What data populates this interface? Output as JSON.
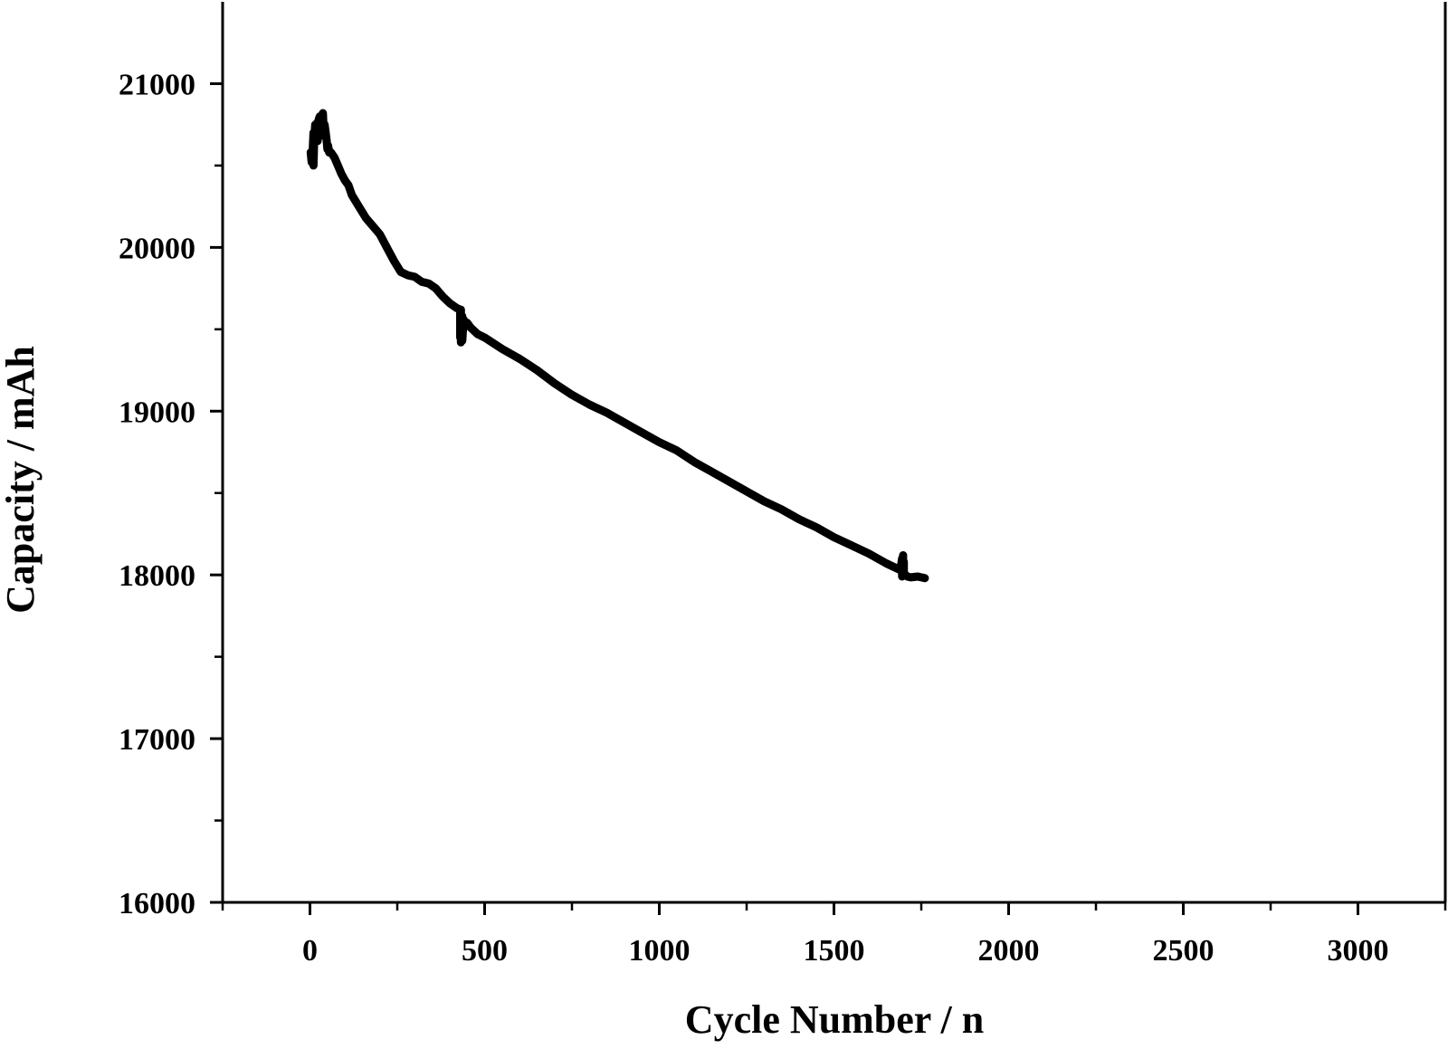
{
  "chart_data": {
    "type": "line",
    "title": "",
    "xlabel": "Cycle Number / n",
    "ylabel": "Capacity / mAh",
    "xlim": [
      -250,
      3250
    ],
    "ylim": [
      16000,
      21500
    ],
    "x_ticks": [
      0,
      500,
      1000,
      1500,
      2000,
      2500,
      3000
    ],
    "x_tick_labels": [
      "0",
      "500",
      "1000",
      "1500",
      "2000",
      "2500",
      "3000"
    ],
    "x_minor_ticks": [
      -250,
      250,
      750,
      1250,
      1750,
      2250,
      2750,
      3250
    ],
    "y_ticks": [
      16000,
      17000,
      18000,
      19000,
      20000,
      21000
    ],
    "y_tick_labels": [
      "16000",
      "17000",
      "18000",
      "19000",
      "20000",
      "21000"
    ],
    "y_minor_ticks": [
      16500,
      17500,
      18500,
      19500,
      20500
    ],
    "grid": false,
    "line_color": "#000000",
    "series": [
      {
        "x": [
          2,
          5,
          8,
          10,
          10,
          12,
          15,
          18,
          20,
          22,
          25,
          28,
          30,
          32,
          35,
          37,
          40,
          42,
          45,
          48,
          50,
          52,
          55,
          60,
          70,
          80,
          90,
          100,
          110,
          120,
          140,
          160,
          180,
          200,
          220,
          240,
          260,
          280,
          300,
          320,
          340,
          360,
          380,
          400,
          420,
          430,
          430,
          432,
          432,
          436,
          436,
          440,
          440,
          450,
          460,
          480,
          500,
          550,
          600,
          650,
          700,
          750,
          800,
          850,
          900,
          950,
          1000,
          1050,
          1100,
          1150,
          1200,
          1250,
          1300,
          1350,
          1400,
          1450,
          1500,
          1550,
          1600,
          1650,
          1690,
          1695,
          1695,
          1698,
          1698,
          1700,
          1700,
          1710,
          1720,
          1740,
          1760
        ],
        "y": [
          20580,
          20520,
          20600,
          20700,
          20500,
          20650,
          20750,
          20700,
          20760,
          20650,
          20780,
          20800,
          20700,
          20800,
          20750,
          20820,
          20680,
          20750,
          20700,
          20650,
          20600,
          20620,
          20580,
          20580,
          20550,
          20500,
          20450,
          20410,
          20380,
          20320,
          20250,
          20180,
          20130,
          20080,
          20000,
          19920,
          19850,
          19830,
          19820,
          19790,
          19780,
          19750,
          19700,
          19660,
          19630,
          19620,
          19450,
          19620,
          19420,
          19580,
          19430,
          19560,
          19530,
          19540,
          19510,
          19470,
          19450,
          19380,
          19320,
          19250,
          19170,
          19100,
          19040,
          18990,
          18930,
          18870,
          18810,
          18760,
          18690,
          18630,
          18570,
          18510,
          18450,
          18400,
          18340,
          18290,
          18230,
          18180,
          18130,
          18070,
          18030,
          18100,
          17990,
          18120,
          18000,
          18080,
          18010,
          17990,
          17985,
          17990,
          17980
        ]
      }
    ]
  }
}
